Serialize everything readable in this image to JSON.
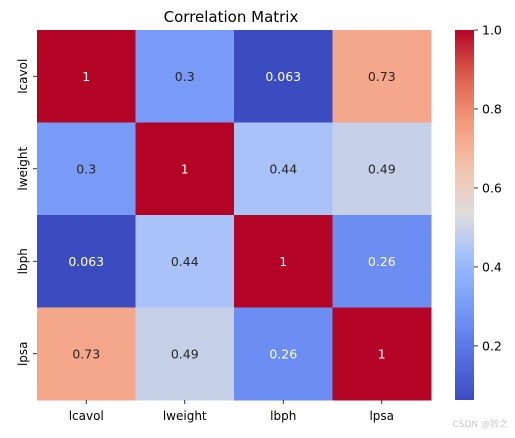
{
  "chart_data": {
    "type": "heatmap",
    "title": "Correlation Matrix",
    "rows": [
      "lcavol",
      "lweight",
      "lbph",
      "lpsa"
    ],
    "columns": [
      "lcavol",
      "lweight",
      "lbph",
      "lpsa"
    ],
    "values": [
      [
        1,
        0.3,
        0.063,
        0.73
      ],
      [
        0.3,
        1,
        0.44,
        0.49
      ],
      [
        0.063,
        0.44,
        1,
        0.26
      ],
      [
        0.73,
        0.49,
        0.26,
        1
      ]
    ],
    "value_labels": [
      [
        "1",
        "0.3",
        "0.063",
        "0.73"
      ],
      [
        "0.3",
        "1",
        "0.44",
        "0.49"
      ],
      [
        "0.063",
        "0.44",
        "1",
        "0.26"
      ],
      [
        "0.73",
        "0.49",
        "0.26",
        "1"
      ]
    ],
    "colormap": "coolwarm",
    "color_range": [
      0.063,
      1.0
    ],
    "colorbar": {
      "ticks": [
        0.2,
        0.4,
        0.6,
        0.8,
        1.0
      ],
      "tick_labels": [
        "0.2",
        "0.4",
        "0.6",
        "0.8",
        "1.0"
      ]
    }
  },
  "watermark": "CSDN @铃之"
}
